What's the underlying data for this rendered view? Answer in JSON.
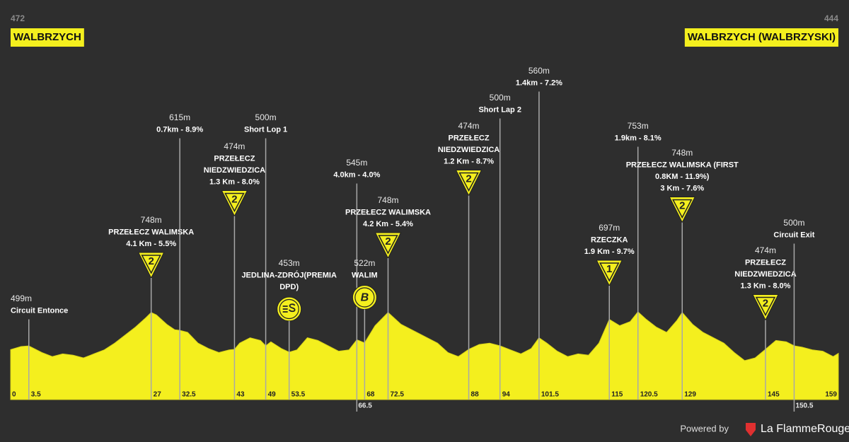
{
  "chart_data": {
    "type": "profile",
    "start": {
      "elevation": 472,
      "name": "WALBRZYCH"
    },
    "finish": {
      "elevation": 444,
      "name": "WALBRZYCH (WALBRZYSKI)"
    },
    "xlim": [
      0,
      159
    ],
    "ylim": [
      100,
      900
    ],
    "color": "#f4ef1e",
    "profile": {
      "km": [
        0,
        2,
        3.5,
        6,
        8,
        10,
        12,
        14,
        16,
        18,
        20,
        22,
        24,
        26,
        27,
        28,
        30,
        31.5,
        32.5,
        34,
        36,
        38,
        40,
        42,
        43,
        44,
        46,
        48,
        49,
        50,
        52,
        53.5,
        55,
        57,
        59,
        61,
        63,
        65,
        66.5,
        68,
        70,
        72.5,
        75,
        78,
        80,
        82,
        84,
        86,
        88,
        90,
        92,
        94,
        96,
        98,
        100,
        101.5,
        103,
        105,
        107,
        109,
        111,
        113,
        115,
        117,
        119,
        120.5,
        122,
        124,
        126,
        128,
        129,
        131,
        133,
        135,
        137,
        139,
        141,
        143,
        145,
        147,
        149,
        150.5,
        152,
        154,
        156,
        158,
        159
      ],
      "elevation": [
        472,
        495,
        499,
        450,
        420,
        440,
        430,
        410,
        440,
        470,
        520,
        580,
        640,
        710,
        748,
        730,
        660,
        620,
        615,
        600,
        520,
        480,
        450,
        470,
        474,
        520,
        560,
        540,
        500,
        530,
        480,
        453,
        470,
        560,
        540,
        500,
        460,
        470,
        545,
        522,
        650,
        748,
        660,
        600,
        560,
        520,
        450,
        420,
        474,
        510,
        520,
        500,
        470,
        440,
        480,
        560,
        520,
        460,
        420,
        440,
        430,
        520,
        697,
        650,
        680,
        753,
        700,
        640,
        600,
        690,
        748,
        660,
        600,
        560,
        520,
        450,
        390,
        410,
        474,
        540,
        530,
        500,
        490,
        470,
        460,
        420,
        444
      ]
    },
    "points": [
      {
        "km": 3.5,
        "altitude": "499m",
        "lines": [
          "Circuit Entonce"
        ]
      },
      {
        "km": 27,
        "altitude": "748m",
        "lines": [
          "PRZEŁECZ WALIMSKA",
          "4.1 Km - 5.5%"
        ],
        "badge": {
          "shape": "triangle",
          "label": "2"
        }
      },
      {
        "km": 32.5,
        "altitude": "615m",
        "lines": [
          "0.7km - 8.9%"
        ]
      },
      {
        "km": 43,
        "altitude": "474m",
        "lines": [
          "PRZEŁECZ",
          "NIEDZWIEDZICA",
          "1.3 Km - 8.0%"
        ],
        "badge": {
          "shape": "triangle",
          "label": "2"
        }
      },
      {
        "km": 49,
        "altitude": "500m",
        "lines": [
          "Short Lop 1"
        ]
      },
      {
        "km": 53.5,
        "altitude": "453m",
        "lines": [
          "JEDLINA-ZDRÓJ(PREMIA",
          "DPD)"
        ],
        "badge": {
          "shape": "sprint"
        }
      },
      {
        "km": 66.5,
        "altitude": "545m",
        "lines": [
          "4.0km - 4.0%"
        ]
      },
      {
        "km": 68,
        "altitude": "522m",
        "lines": [
          "WALIM"
        ],
        "badge": {
          "shape": "circle",
          "label": "B"
        }
      },
      {
        "km": 72.5,
        "altitude": "748m",
        "lines": [
          "PRZEŁECZ WALIMSKA",
          "4.2 Km - 5.4%"
        ],
        "badge": {
          "shape": "triangle",
          "label": "2"
        }
      },
      {
        "km": 88,
        "altitude": "474m",
        "lines": [
          "PRZEŁECZ",
          "NIEDZWIEDZICA",
          "1.2 Km - 8.7%"
        ],
        "badge": {
          "shape": "triangle",
          "label": "2"
        }
      },
      {
        "km": 94,
        "altitude": "500m",
        "lines": [
          "Short Lap 2"
        ]
      },
      {
        "km": 101.5,
        "altitude": "560m",
        "lines": [
          "1.4km - 7.2%"
        ]
      },
      {
        "km": 115,
        "altitude": "697m",
        "lines": [
          "RZECZKA",
          "1.9 Km - 9.7%"
        ],
        "badge": {
          "shape": "triangle",
          "label": "1"
        }
      },
      {
        "km": 120.5,
        "altitude": "753m",
        "lines": [
          "1.9km - 8.1%"
        ]
      },
      {
        "km": 129,
        "altitude": "748m",
        "lines": [
          "PRZEŁECZ WALIMSKA (FIRST",
          "0.8KM - 11.9%)",
          "3 Km - 7.6%"
        ],
        "badge": {
          "shape": "triangle",
          "label": "2"
        }
      },
      {
        "km": 145,
        "altitude": "474m",
        "lines": [
          "PRZEŁECZ",
          "NIEDZWIEDZICA",
          "1.3 Km - 8.0%"
        ],
        "badge": {
          "shape": "triangle",
          "label": "2"
        }
      },
      {
        "km": 150.5,
        "altitude": "500m",
        "lines": [
          "Circuit Exit"
        ]
      }
    ],
    "footer": {
      "powered": "Powered by",
      "brand": "La FlammeRouge"
    }
  }
}
